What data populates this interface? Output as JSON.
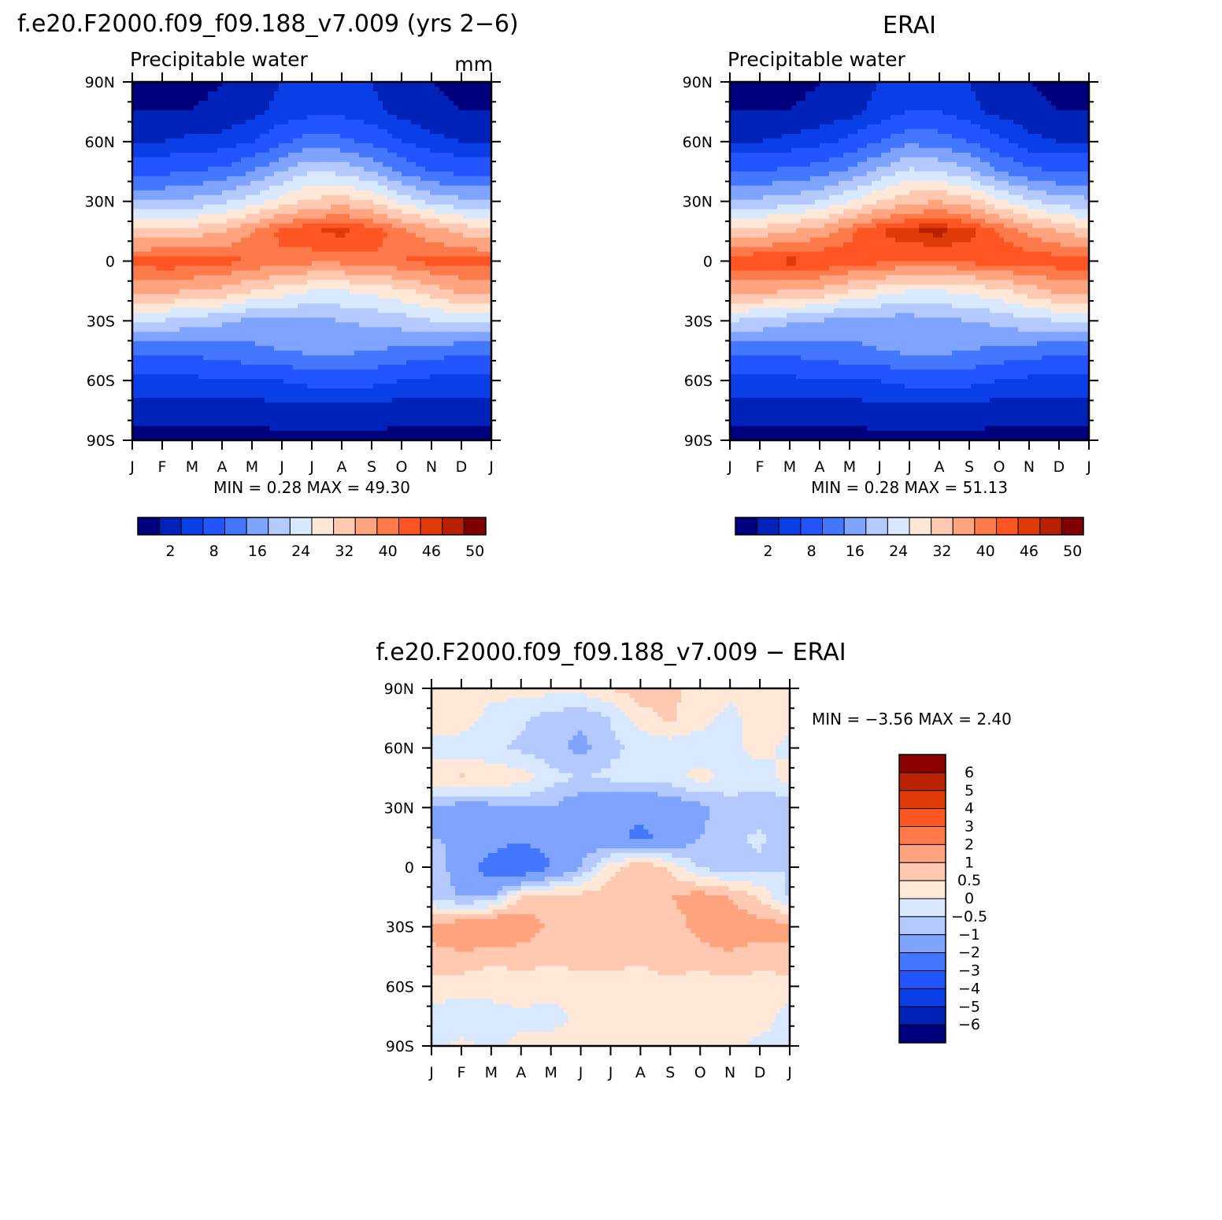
{
  "panels": [
    {
      "id": "model",
      "main_title": "f.e20.F2000.f09_f09.188_v7.009 (yrs 2−6)",
      "left_title": "Precipitable water",
      "right_title": "mm",
      "min_max": "MIN =    0.28  MAX =    49.30"
    },
    {
      "id": "obs",
      "main_title": "ERAI",
      "left_title": "Precipitable water",
      "right_title": "",
      "min_max": "MIN =    0.28  MAX =    51.13"
    },
    {
      "id": "diff",
      "main_title": "f.e20.F2000.f09_f09.188_v7.009 − ERAI",
      "left_title": "",
      "right_title": "",
      "min_max": "MIN =   −3.56  MAX =    2.40"
    }
  ],
  "colorbar_main": {
    "labels": [
      "2",
      "8",
      "16",
      "24",
      "32",
      "40",
      "46",
      "50"
    ],
    "colors": [
      "#00007f",
      "#0022b8",
      "#0a3fe8",
      "#2255ff",
      "#4477ff",
      "#7ea4ff",
      "#b4caff",
      "#d8e8ff",
      "#ffe8d8",
      "#ffc8b0",
      "#ffa47e",
      "#ff7a4a",
      "#ff5522",
      "#e03a06",
      "#b82000",
      "#7f0000"
    ]
  },
  "colorbar_diff": {
    "labels": [
      "6",
      "5",
      "4",
      "3",
      "2",
      "1",
      "0.5",
      "0",
      "−0.5",
      "−1",
      "−2",
      "−3",
      "−4",
      "−5",
      "−6"
    ],
    "colors": [
      "#8c0000",
      "#bb2200",
      "#e03a06",
      "#ff5522",
      "#ff7a4a",
      "#ffa47e",
      "#ffc8b0",
      "#ffe8d8",
      "#d8e8ff",
      "#b4caff",
      "#7ea4ff",
      "#4477ff",
      "#2255ff",
      "#0a3fe8",
      "#0022b8",
      "#00007f"
    ]
  },
  "chart_data": [
    {
      "type": "heatmap",
      "title": "f.e20.F2000.f09_f09.188_v7.009 (yrs 2−6)",
      "subtitle": "Precipitable water",
      "units": "mm",
      "x_tick_labels": [
        "J",
        "F",
        "M",
        "A",
        "M",
        "J",
        "J",
        "A",
        "S",
        "O",
        "N",
        "D",
        "J"
      ],
      "y_tick_labels": [
        "90N",
        "60N",
        "30N",
        "0",
        "30S",
        "60S",
        "90S"
      ],
      "ylim": [
        -90,
        90
      ],
      "x": [
        "J",
        "F",
        "M",
        "A",
        "M",
        "J",
        "J",
        "A",
        "S",
        "O",
        "N",
        "D",
        "J"
      ],
      "y": [
        -90,
        -75,
        -60,
        -45,
        -30,
        -15,
        0,
        15,
        30,
        45,
        60,
        75,
        90
      ],
      "z": [
        [
          1,
          1,
          1,
          1,
          1,
          1,
          1,
          1,
          1,
          1,
          1,
          1,
          1
        ],
        [
          3,
          3,
          3,
          3,
          3,
          4,
          4,
          4,
          4,
          3,
          3,
          3,
          3
        ],
        [
          7,
          7,
          7,
          8,
          8,
          8,
          9,
          9,
          9,
          8,
          7,
          7,
          7
        ],
        [
          13,
          13,
          13,
          14,
          15,
          16,
          17,
          17,
          16,
          15,
          14,
          13,
          13
        ],
        [
          25,
          24,
          22,
          21,
          19,
          19,
          19,
          20,
          21,
          22,
          24,
          25,
          25
        ],
        [
          38,
          37,
          36,
          35,
          32,
          30,
          28,
          28,
          29,
          31,
          34,
          37,
          38
        ],
        [
          44,
          45,
          45,
          44,
          43,
          42,
          41,
          41,
          42,
          43,
          44,
          44,
          44
        ],
        [
          33,
          33,
          34,
          36,
          40,
          44,
          46,
          47,
          45,
          41,
          38,
          35,
          33
        ],
        [
          20,
          20,
          21,
          23,
          26,
          30,
          33,
          34,
          32,
          27,
          23,
          21,
          20
        ],
        [
          11,
          11,
          12,
          13,
          16,
          20,
          24,
          23,
          20,
          15,
          12,
          11,
          11
        ],
        [
          5,
          5,
          6,
          6,
          8,
          11,
          14,
          13,
          11,
          8,
          6,
          5,
          5
        ],
        [
          2,
          2,
          2,
          3,
          4,
          6,
          7,
          7,
          6,
          4,
          3,
          2,
          2
        ],
        [
          1,
          1,
          1,
          2,
          3,
          5,
          6,
          6,
          5,
          3,
          2,
          1,
          1
        ]
      ],
      "levels": [
        2,
        5,
        8,
        12,
        16,
        20,
        24,
        28,
        32,
        36,
        40,
        43,
        46,
        48,
        50
      ],
      "colorbar_labels": [
        "2",
        "8",
        "16",
        "24",
        "32",
        "40",
        "46",
        "50"
      ],
      "min": 0.28,
      "max": 49.3
    },
    {
      "type": "heatmap",
      "title": "ERAI",
      "subtitle": "Precipitable water",
      "x_tick_labels": [
        "J",
        "F",
        "M",
        "A",
        "M",
        "J",
        "J",
        "A",
        "S",
        "O",
        "N",
        "D",
        "J"
      ],
      "y_tick_labels": [
        "90N",
        "60N",
        "30N",
        "0",
        "30S",
        "60S",
        "90S"
      ],
      "ylim": [
        -90,
        90
      ],
      "x": [
        "J",
        "F",
        "M",
        "A",
        "M",
        "J",
        "J",
        "A",
        "S",
        "O",
        "N",
        "D",
        "J"
      ],
      "y": [
        -90,
        -75,
        -60,
        -45,
        -30,
        -15,
        0,
        15,
        30,
        45,
        60,
        75,
        90
      ],
      "z": [
        [
          1,
          1,
          1,
          1,
          1,
          1,
          1,
          1,
          1,
          1,
          1,
          1,
          1
        ],
        [
          3,
          3,
          3,
          3,
          3,
          4,
          4,
          4,
          4,
          3,
          3,
          3,
          3
        ],
        [
          7,
          7,
          7,
          8,
          8,
          8,
          9,
          9,
          9,
          8,
          7,
          7,
          7
        ],
        [
          13,
          13,
          13,
          14,
          15,
          16,
          17,
          17,
          16,
          15,
          14,
          13,
          13
        ],
        [
          24,
          23,
          21,
          20,
          18,
          18,
          18,
          19,
          20,
          21,
          23,
          24,
          24
        ],
        [
          37,
          37,
          36,
          35,
          32,
          30,
          28,
          28,
          29,
          31,
          34,
          37,
          37
        ],
        [
          45,
          46,
          47,
          46,
          45,
          44,
          43,
          43,
          44,
          45,
          45,
          45,
          45
        ],
        [
          33,
          34,
          36,
          38,
          42,
          46,
          48,
          49,
          47,
          43,
          39,
          36,
          33
        ],
        [
          21,
          21,
          22,
          24,
          28,
          32,
          35,
          36,
          34,
          29,
          25,
          22,
          21
        ],
        [
          12,
          12,
          13,
          14,
          17,
          21,
          25,
          24,
          21,
          16,
          13,
          12,
          12
        ],
        [
          5,
          5,
          6,
          7,
          9,
          12,
          15,
          14,
          12,
          9,
          6,
          5,
          5
        ],
        [
          2,
          2,
          2,
          3,
          4,
          6,
          8,
          8,
          6,
          4,
          3,
          2,
          2
        ],
        [
          1,
          1,
          1,
          2,
          3,
          5,
          7,
          7,
          5,
          3,
          2,
          1,
          1
        ]
      ],
      "levels": [
        2,
        5,
        8,
        12,
        16,
        20,
        24,
        28,
        32,
        36,
        40,
        43,
        46,
        48,
        50
      ],
      "colorbar_labels": [
        "2",
        "8",
        "16",
        "24",
        "32",
        "40",
        "46",
        "50"
      ],
      "min": 0.28,
      "max": 51.13
    },
    {
      "type": "heatmap",
      "title": "f.e20.F2000.f09_f09.188_v7.009 − ERAI",
      "x_tick_labels": [
        "J",
        "F",
        "M",
        "A",
        "M",
        "J",
        "J",
        "A",
        "S",
        "O",
        "N",
        "D",
        "J"
      ],
      "y_tick_labels": [
        "90N",
        "60N",
        "30N",
        "0",
        "30S",
        "60S",
        "90S"
      ],
      "ylim": [
        -90,
        90
      ],
      "x": [
        "J",
        "F",
        "M",
        "A",
        "M",
        "J",
        "J",
        "A",
        "S",
        "O",
        "N",
        "D",
        "J"
      ],
      "y": [
        -90,
        -75,
        -60,
        -45,
        -30,
        -15,
        0,
        15,
        30,
        45,
        60,
        75,
        90
      ],
      "z": [
        [
          -0.1,
          0.1,
          -0.1,
          0.1,
          0.2,
          0.2,
          0.3,
          0.3,
          0.2,
          0.1,
          0.1,
          -0.1,
          -0.1
        ],
        [
          -0.2,
          -0.3,
          -0.2,
          -0.1,
          -0.2,
          0.1,
          0.2,
          0.2,
          0.1,
          0.2,
          0.1,
          0.2,
          -0.2
        ],
        [
          0.3,
          0.2,
          0.2,
          0.3,
          0.2,
          0.3,
          0.4,
          0.3,
          0.4,
          0.2,
          0.3,
          0.3,
          0.3
        ],
        [
          0.8,
          0.9,
          0.6,
          0.7,
          0.6,
          0.7,
          0.6,
          0.6,
          0.7,
          0.8,
          0.9,
          0.7,
          0.8
        ],
        [
          1.2,
          1.5,
          2.0,
          1.4,
          0.9,
          0.7,
          0.8,
          0.6,
          0.7,
          1.2,
          1.4,
          1.3,
          1.2
        ],
        [
          -0.6,
          -1.0,
          -1.0,
          0.6,
          0.8,
          0.7,
          0.8,
          0.6,
          1.0,
          1.3,
          1.0,
          0.4,
          -0.6
        ],
        [
          -0.5,
          -1.5,
          -2.5,
          -3.0,
          -2.0,
          -1.0,
          0.3,
          1.0,
          0.4,
          -0.6,
          -0.8,
          -0.6,
          -0.5
        ],
        [
          -1.0,
          -1.1,
          -1.5,
          -1.8,
          -1.6,
          -1.5,
          -1.7,
          -2.2,
          -1.8,
          -1.0,
          -0.6,
          -0.4,
          -1.0
        ],
        [
          -1.0,
          -1.3,
          -1.2,
          -1.0,
          -1.0,
          -1.5,
          -1.7,
          -1.8,
          -1.5,
          -1.2,
          -0.7,
          -0.8,
          -1.0
        ],
        [
          0.3,
          0.6,
          0.4,
          0.3,
          -0.3,
          -0.5,
          -0.4,
          -0.3,
          -0.2,
          0.2,
          -0.2,
          -0.3,
          0.3
        ],
        [
          -0.2,
          -0.3,
          -0.4,
          -0.6,
          -0.8,
          -1.2,
          -0.6,
          -0.4,
          -0.3,
          -0.3,
          -0.2,
          0.2,
          -0.2
        ],
        [
          0.2,
          0.3,
          -0.2,
          -0.4,
          -0.7,
          -0.9,
          -0.5,
          0.3,
          0.6,
          0.2,
          -0.2,
          0.3,
          0.2
        ],
        [
          0.2,
          0.2,
          0.2,
          0.2,
          0.2,
          0.2,
          0.5,
          0.8,
          0.6,
          0.3,
          0.2,
          0.2,
          0.2
        ]
      ],
      "levels": [
        -6,
        -5,
        -4,
        -3,
        -2,
        -1,
        -0.5,
        0,
        0.5,
        1,
        2,
        3,
        4,
        5,
        6
      ],
      "colorbar_labels": [
        "6",
        "5",
        "4",
        "3",
        "2",
        "1",
        "0.5",
        "0",
        "−0.5",
        "−1",
        "−2",
        "−3",
        "−4",
        "−5",
        "−6"
      ],
      "min": -3.56,
      "max": 2.4
    }
  ]
}
